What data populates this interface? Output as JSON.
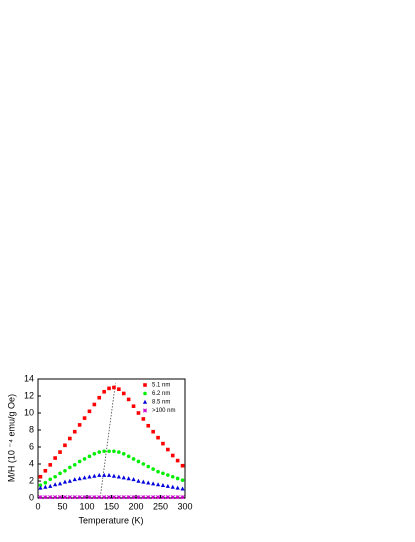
{
  "chart_data": {
    "type": "scatter",
    "xlabel": "Temperature (K)",
    "ylabel": "M/H (10 ⁻⁴ emu/g Oe)",
    "x": [
      5,
      15,
      25,
      35,
      45,
      55,
      65,
      75,
      85,
      95,
      105,
      115,
      125,
      135,
      145,
      155,
      165,
      175,
      185,
      195,
      205,
      215,
      225,
      235,
      245,
      255,
      265,
      275,
      285,
      295
    ],
    "series": [
      {
        "name": "5.1 nm",
        "color": "#ff0000",
        "marker": "square",
        "values": [
          2.5,
          3.2,
          3.9,
          4.7,
          5.4,
          6.2,
          7.0,
          7.8,
          8.6,
          9.4,
          10.2,
          11.0,
          11.8,
          12.5,
          12.9,
          13.0,
          12.8,
          12.3,
          11.6,
          10.8,
          10.0,
          9.3,
          8.5,
          7.8,
          7.1,
          6.4,
          5.7,
          5.0,
          4.4,
          3.8
        ]
      },
      {
        "name": "6.2 nm",
        "color": "#00ee00",
        "marker": "circle",
        "values": [
          1.5,
          1.8,
          2.2,
          2.5,
          2.9,
          3.2,
          3.6,
          3.9,
          4.3,
          4.6,
          4.9,
          5.2,
          5.4,
          5.5,
          5.5,
          5.5,
          5.4,
          5.2,
          4.9,
          4.6,
          4.3,
          4.0,
          3.7,
          3.4,
          3.1,
          2.9,
          2.7,
          2.5,
          2.3,
          2.1
        ]
      },
      {
        "name": "8.5 nm",
        "color": "#0000dd",
        "marker": "triangle",
        "values": [
          1.2,
          1.3,
          1.4,
          1.6,
          1.7,
          1.9,
          2.0,
          2.2,
          2.3,
          2.4,
          2.5,
          2.6,
          2.7,
          2.7,
          2.7,
          2.6,
          2.5,
          2.4,
          2.3,
          2.2,
          2.0,
          1.9,
          1.8,
          1.7,
          1.6,
          1.5,
          1.4,
          1.3,
          1.2,
          1.1
        ]
      },
      {
        "name": ">100 nm",
        "color": "#cc00cc",
        "marker": "star",
        "values": [
          0.1,
          0.1,
          0.1,
          0.1,
          0.1,
          0.1,
          0.1,
          0.1,
          0.1,
          0.1,
          0.1,
          0.1,
          0.1,
          0.1,
          0.1,
          0.1,
          0.1,
          0.1,
          0.1,
          0.1,
          0.1,
          0.1,
          0.1,
          0.1,
          0.1,
          0.1,
          0.1,
          0.1,
          0.1,
          0.1
        ]
      }
    ],
    "guide": {
      "x": [
        128,
        158
      ],
      "values": [
        0.5,
        13.5
      ]
    },
    "xlim": [
      0,
      300
    ],
    "xticks": [
      0,
      50,
      100,
      150,
      200,
      250,
      300
    ],
    "ylim": [
      0,
      14
    ],
    "yticks": [
      0,
      2,
      4,
      6,
      8,
      10,
      12,
      14
    ],
    "legend": "upper right"
  }
}
